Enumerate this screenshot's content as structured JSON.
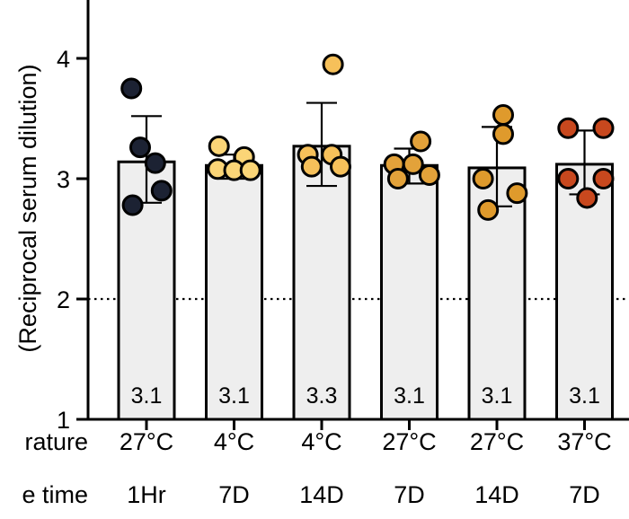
{
  "chart_data": {
    "type": "bar",
    "ylabel": "(Reciprocal serum dilution)",
    "ylim": [
      1,
      4.5
    ],
    "yticks": [
      1,
      2,
      3,
      4
    ],
    "threshold": 2,
    "row_labels": [
      "rature",
      "e time"
    ],
    "categories": [
      {
        "temp": "27°C",
        "time": "1Hr",
        "value": 3.14,
        "label": "3.1",
        "sd_low": 2.8,
        "sd_high": 3.52,
        "color": "#1c2233",
        "points": [
          {
            "x": -0.12,
            "y": 3.75
          },
          {
            "x": -0.05,
            "y": 3.26
          },
          {
            "x": 0.07,
            "y": 3.13
          },
          {
            "x": 0.12,
            "y": 2.9
          },
          {
            "x": -0.11,
            "y": 2.78
          }
        ]
      },
      {
        "temp": "4°C",
        "time": "7D",
        "value": 3.11,
        "label": "3.1",
        "sd_low": 3.0,
        "sd_high": 3.2,
        "color": "#fbd577",
        "points": [
          {
            "x": -0.12,
            "y": 3.27
          },
          {
            "x": 0.08,
            "y": 3.18
          },
          {
            "x": -0.13,
            "y": 3.08
          },
          {
            "x": 0.0,
            "y": 3.07
          },
          {
            "x": 0.13,
            "y": 3.07
          }
        ]
      },
      {
        "temp": "4°C",
        "time": "14D",
        "value": 3.27,
        "label": "3.3",
        "sd_low": 2.94,
        "sd_high": 3.63,
        "color": "#f6c05a",
        "points": [
          {
            "x": 0.09,
            "y": 3.95
          },
          {
            "x": -0.11,
            "y": 3.2
          },
          {
            "x": 0.08,
            "y": 3.2
          },
          {
            "x": -0.08,
            "y": 3.1
          },
          {
            "x": 0.15,
            "y": 3.1
          }
        ]
      },
      {
        "temp": "27°C",
        "time": "7D",
        "value": 3.11,
        "label": "3.1",
        "sd_low": 2.96,
        "sd_high": 3.25,
        "color": "#e3a23a",
        "points": [
          {
            "x": 0.09,
            "y": 3.31
          },
          {
            "x": -0.12,
            "y": 3.12
          },
          {
            "x": 0.03,
            "y": 3.12
          },
          {
            "x": -0.09,
            "y": 3.0
          },
          {
            "x": 0.16,
            "y": 3.03
          }
        ]
      },
      {
        "temp": "27°C",
        "time": "14D",
        "value": 3.09,
        "label": "3.1",
        "sd_low": 2.77,
        "sd_high": 3.43,
        "color": "#df9a2c",
        "points": [
          {
            "x": 0.05,
            "y": 3.53
          },
          {
            "x": 0.05,
            "y": 3.37
          },
          {
            "x": -0.11,
            "y": 3.0
          },
          {
            "x": 0.16,
            "y": 2.88
          },
          {
            "x": -0.07,
            "y": 2.74
          }
        ]
      },
      {
        "temp": "37°C",
        "time": "7D",
        "value": 3.12,
        "label": "3.1",
        "sd_low": 2.87,
        "sd_high": 3.4,
        "color": "#c8481e",
        "points": [
          {
            "x": -0.13,
            "y": 3.42
          },
          {
            "x": 0.15,
            "y": 3.42
          },
          {
            "x": -0.13,
            "y": 3.0
          },
          {
            "x": 0.15,
            "y": 3.0
          },
          {
            "x": 0.02,
            "y": 2.84
          }
        ]
      }
    ]
  }
}
